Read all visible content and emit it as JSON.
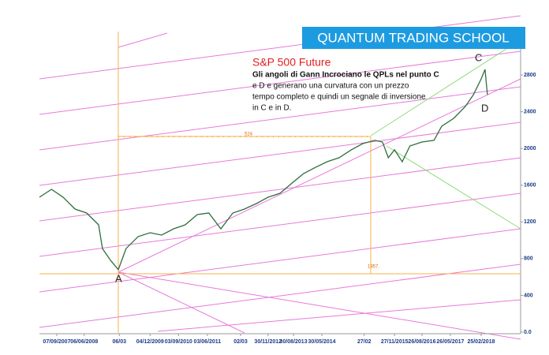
{
  "chart_data": {
    "type": "line",
    "title": "QUANTUM TRADING SCHOOL",
    "subtitle": "S&P 500 Future",
    "note_lines": [
      "Gli angoli di Gann Incrociano le QPLs nel punto C",
      "e D e generano una curvatura con un prezzo",
      "tempo completo e quindi un segnale di inversione",
      "in C  e in D."
    ],
    "annotations": [
      "A",
      "C",
      "D",
      "524",
      "1957."
    ],
    "x": [
      0,
      2.5,
      4.9,
      7.4,
      9.8,
      12.3,
      13.1,
      14.8,
      16.4,
      18,
      20.5,
      23,
      25.4,
      27.9,
      30.3,
      32.8,
      35.2,
      37.7,
      40.2,
      42.6,
      45.1,
      47.5,
      50,
      52.5,
      54.9,
      57.4,
      59.8,
      62.3,
      64.8,
      67.2,
      69.7,
      71.3,
      72.5,
      73.8,
      75.4,
      77,
      79.5,
      82,
      83.6,
      86.1,
      88.5,
      90.2,
      91.8,
      92.6,
      93.1
    ],
    "series": [
      {
        "color": "#2e6e3c",
        "values": [
          1469,
          1555,
          1470,
          1340,
          1297,
          1168,
          910,
          780,
          680,
          910,
          1040,
          1082,
          1057,
          1125,
          1168,
          1280,
          1297,
          1125,
          1297,
          1340,
          1400,
          1469,
          1512,
          1624,
          1727,
          1795,
          1856,
          1899,
          1985,
          2053,
          2088,
          2070,
          1899,
          1985,
          1856,
          2027,
          2070,
          2088,
          2242,
          2328,
          2457,
          2586,
          2758,
          2861,
          2586
        ]
      }
    ],
    "xlim": [
      0,
      100
    ],
    "xticks": [
      {
        "value": 3.6,
        "label": "07/09/2007"
      },
      {
        "value": 9.3,
        "label": "06/06/2008"
      },
      {
        "value": 16.6,
        "label": "06/03"
      },
      {
        "value": 23,
        "label": "04/12/2009"
      },
      {
        "value": 28.9,
        "label": "03/09/2010"
      },
      {
        "value": 34.9,
        "label": "03/06/2011"
      },
      {
        "value": 41.8,
        "label": "02/03"
      },
      {
        "value": 47.5,
        "label": "30/11/2012"
      },
      {
        "value": 52.8,
        "label": "30/08/2013"
      },
      {
        "value": 58.7,
        "label": "30/05/2014"
      },
      {
        "value": 67.5,
        "label": "27/02"
      },
      {
        "value": 73.8,
        "label": "27/11/2015"
      },
      {
        "value": 79.5,
        "label": "26/08/2016"
      },
      {
        "value": 85.4,
        "label": "26/05/2017"
      },
      {
        "value": 91.8,
        "label": "25/02/2018"
      }
    ],
    "ylim": [
      0,
      3200
    ],
    "yticks": [
      {
        "value": 0,
        "label": "0.0"
      },
      400,
      800,
      1200,
      1600,
      2000,
      2400,
      2800
    ]
  }
}
